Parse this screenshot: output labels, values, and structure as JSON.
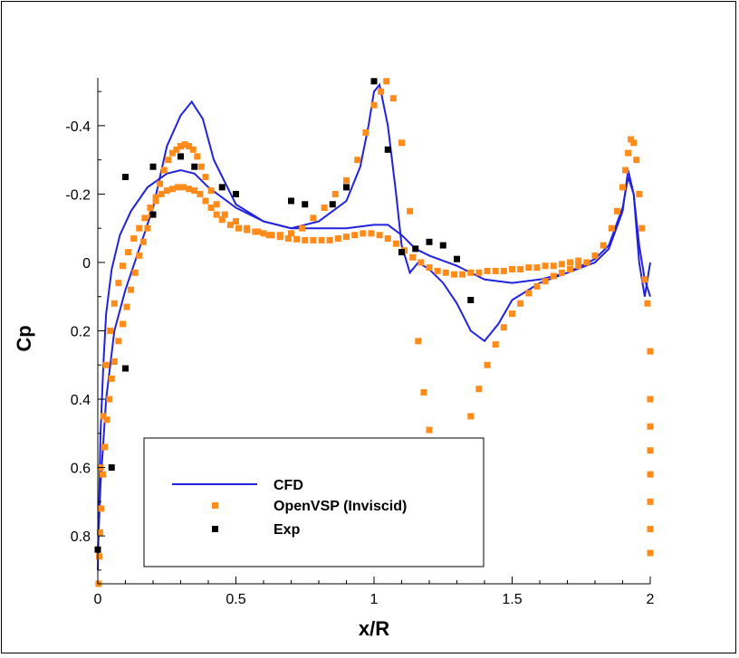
{
  "chart_data": {
    "type": "line",
    "title": "",
    "xlabel": "x/R",
    "ylabel": "Cp",
    "xlim": [
      0,
      2
    ],
    "ylim": [
      -0.54,
      0.94
    ],
    "y_inverted": true,
    "grid": false,
    "legend_position": "bottom-left",
    "x_ticks": [
      0,
      0.5,
      1,
      1.5,
      2
    ],
    "x_tick_labels": [
      "0",
      "0.5",
      "1",
      "1.5",
      "2"
    ],
    "y_ticks": [
      -0.4,
      -0.2,
      0,
      0.2,
      0.4,
      0.6,
      0.8
    ],
    "y_tick_labels": [
      "-0.4",
      "-0.2",
      "0",
      "0.2",
      "0.4",
      "0.6",
      "0.8"
    ],
    "colors": {
      "cfd": "#2222dd",
      "openvsp": "#ff8c1a",
      "exp": "#000000"
    },
    "series": [
      {
        "name": "CFD",
        "kind": "line",
        "curves": [
          [
            [
              0,
              0.9
            ],
            [
              0.005,
              0.7
            ],
            [
              0.01,
              0.5
            ],
            [
              0.02,
              0.3
            ],
            [
              0.03,
              0.15
            ],
            [
              0.05,
              0.02
            ],
            [
              0.08,
              -0.08
            ],
            [
              0.12,
              -0.15
            ],
            [
              0.18,
              -0.22
            ],
            [
              0.25,
              -0.26
            ],
            [
              0.3,
              -0.27
            ],
            [
              0.35,
              -0.26
            ],
            [
              0.4,
              -0.22
            ],
            [
              0.5,
              -0.16
            ],
            [
              0.6,
              -0.12
            ],
            [
              0.7,
              -0.1
            ],
            [
              0.8,
              -0.1
            ],
            [
              0.9,
              -0.1
            ],
            [
              1.0,
              -0.11
            ],
            [
              1.05,
              -0.11
            ],
            [
              1.1,
              -0.08
            ],
            [
              1.15,
              -0.04
            ],
            [
              1.2,
              -0.02
            ],
            [
              1.3,
              0.01
            ],
            [
              1.4,
              0.05
            ],
            [
              1.5,
              0.06
            ],
            [
              1.6,
              0.05
            ],
            [
              1.7,
              0.03
            ],
            [
              1.8,
              0.0
            ],
            [
              1.85,
              -0.04
            ],
            [
              1.9,
              -0.15
            ],
            [
              1.92,
              -0.27
            ],
            [
              1.94,
              -0.2
            ],
            [
              1.96,
              0.0
            ],
            [
              1.98,
              0.1
            ],
            [
              2.0,
              0.0
            ]
          ],
          [
            [
              0,
              0.85
            ],
            [
              0.01,
              0.65
            ],
            [
              0.03,
              0.4
            ],
            [
              0.06,
              0.2
            ],
            [
              0.1,
              0.08
            ],
            [
              0.15,
              -0.04
            ],
            [
              0.2,
              -0.16
            ],
            [
              0.25,
              -0.34
            ],
            [
              0.3,
              -0.43
            ],
            [
              0.34,
              -0.47
            ],
            [
              0.38,
              -0.42
            ],
            [
              0.42,
              -0.3
            ],
            [
              0.5,
              -0.17
            ],
            [
              0.6,
              -0.12
            ],
            [
              0.7,
              -0.1
            ],
            [
              0.8,
              -0.12
            ],
            [
              0.9,
              -0.18
            ],
            [
              0.95,
              -0.28
            ],
            [
              0.98,
              -0.4
            ],
            [
              1.0,
              -0.5
            ],
            [
              1.02,
              -0.52
            ],
            [
              1.05,
              -0.4
            ],
            [
              1.08,
              -0.2
            ],
            [
              1.1,
              -0.05
            ],
            [
              1.13,
              0.03
            ],
            [
              1.16,
              0.0
            ],
            [
              1.2,
              0.02
            ],
            [
              1.25,
              0.06
            ],
            [
              1.3,
              0.12
            ],
            [
              1.35,
              0.2
            ],
            [
              1.4,
              0.23
            ],
            [
              1.45,
              0.18
            ],
            [
              1.5,
              0.11
            ],
            [
              1.6,
              0.06
            ],
            [
              1.7,
              0.03
            ],
            [
              1.8,
              -0.01
            ],
            [
              1.85,
              -0.05
            ],
            [
              1.9,
              -0.16
            ],
            [
              1.92,
              -0.25
            ],
            [
              1.94,
              -0.2
            ],
            [
              1.96,
              -0.05
            ],
            [
              1.98,
              0.05
            ],
            [
              2.0,
              0.1
            ]
          ]
        ]
      },
      {
        "name": "OpenVSP (Inviscid)",
        "kind": "square-markers",
        "points": [
          [
            0.003,
            0.94
          ],
          [
            0.005,
            0.86
          ],
          [
            0.008,
            0.79
          ],
          [
            0.012,
            0.72
          ],
          [
            0.018,
            0.62
          ],
          [
            0.025,
            0.54
          ],
          [
            0.033,
            0.46
          ],
          [
            0.042,
            0.4
          ],
          [
            0.05,
            0.34
          ],
          [
            0.06,
            0.29
          ],
          [
            0.075,
            0.23
          ],
          [
            0.09,
            0.18
          ],
          [
            0.105,
            0.13
          ],
          [
            0.12,
            0.08
          ],
          [
            0.135,
            0.03
          ],
          [
            0.15,
            -0.02
          ],
          [
            0.165,
            -0.06
          ],
          [
            0.18,
            -0.1
          ],
          [
            0.195,
            -0.14
          ],
          [
            0.21,
            -0.19
          ],
          [
            0.225,
            -0.23
          ],
          [
            0.24,
            -0.27
          ],
          [
            0.255,
            -0.3
          ],
          [
            0.27,
            -0.32
          ],
          [
            0.285,
            -0.33
          ],
          [
            0.3,
            -0.34
          ],
          [
            0.315,
            -0.345
          ],
          [
            0.33,
            -0.34
          ],
          [
            0.345,
            -0.33
          ],
          [
            0.36,
            -0.31
          ],
          [
            0.375,
            -0.28
          ],
          [
            0.39,
            -0.25
          ],
          [
            0.41,
            -0.21
          ],
          [
            0.43,
            -0.17
          ],
          [
            0.46,
            -0.14
          ],
          [
            0.5,
            -0.12
          ],
          [
            0.54,
            -0.1
          ],
          [
            0.58,
            -0.09
          ],
          [
            0.62,
            -0.08
          ],
          [
            0.66,
            -0.08
          ],
          [
            0.7,
            -0.085
          ],
          [
            0.74,
            -0.1
          ],
          [
            0.78,
            -0.13
          ],
          [
            0.82,
            -0.16
          ],
          [
            0.86,
            -0.2
          ],
          [
            0.9,
            -0.24
          ],
          [
            0.94,
            -0.3
          ],
          [
            0.97,
            -0.38
          ],
          [
            1.0,
            -0.46
          ],
          [
            1.025,
            -0.5
          ],
          [
            1.045,
            -0.53
          ],
          [
            1.07,
            -0.48
          ],
          [
            1.1,
            -0.35
          ],
          [
            1.13,
            -0.15
          ],
          [
            1.16,
            0.23
          ],
          [
            1.18,
            0.38
          ],
          [
            1.2,
            0.49
          ],
          [
            1.22,
            0.58
          ],
          [
            1.24,
            0.63
          ],
          [
            1.26,
            0.65
          ],
          [
            1.28,
            0.63
          ],
          [
            1.3,
            0.6
          ],
          [
            1.32,
            0.53
          ],
          [
            1.35,
            0.45
          ],
          [
            1.38,
            0.37
          ],
          [
            1.41,
            0.3
          ],
          [
            1.44,
            0.24
          ],
          [
            1.47,
            0.19
          ],
          [
            1.5,
            0.15
          ],
          [
            1.53,
            0.12
          ],
          [
            1.56,
            0.09
          ],
          [
            1.59,
            0.07
          ],
          [
            1.62,
            0.055
          ],
          [
            1.65,
            0.04
          ],
          [
            1.68,
            0.03
          ],
          [
            1.71,
            0.02
          ],
          [
            1.74,
            0.01
          ],
          [
            1.77,
            0.0
          ],
          [
            1.8,
            -0.02
          ],
          [
            1.83,
            -0.05
          ],
          [
            1.86,
            -0.1
          ],
          [
            1.88,
            -0.15
          ],
          [
            1.9,
            -0.22
          ],
          [
            1.91,
            -0.27
          ],
          [
            1.92,
            -0.32
          ],
          [
            1.93,
            -0.36
          ],
          [
            1.94,
            -0.35
          ],
          [
            1.95,
            -0.3
          ],
          [
            1.96,
            -0.2
          ],
          [
            1.97,
            -0.1
          ],
          [
            1.98,
            0.05
          ],
          [
            1.99,
            0.12
          ],
          [
            2.0,
            0.26
          ],
          [
            2.0,
            0.4
          ],
          [
            2.0,
            0.48
          ],
          [
            2.0,
            0.55
          ],
          [
            2.0,
            0.62
          ],
          [
            2.0,
            0.7
          ],
          [
            2.0,
            0.78
          ],
          [
            2.0,
            0.85
          ],
          [
            0.01,
            0.6
          ],
          [
            0.02,
            0.45
          ],
          [
            0.03,
            0.3
          ],
          [
            0.045,
            0.2
          ],
          [
            0.06,
            0.12
          ],
          [
            0.075,
            0.06
          ],
          [
            0.09,
            0.01
          ],
          [
            0.11,
            -0.03
          ],
          [
            0.13,
            -0.07
          ],
          [
            0.15,
            -0.1
          ],
          [
            0.17,
            -0.13
          ],
          [
            0.19,
            -0.16
          ],
          [
            0.21,
            -0.18
          ],
          [
            0.23,
            -0.2
          ],
          [
            0.25,
            -0.21
          ],
          [
            0.27,
            -0.215
          ],
          [
            0.29,
            -0.22
          ],
          [
            0.31,
            -0.22
          ],
          [
            0.33,
            -0.215
          ],
          [
            0.35,
            -0.21
          ],
          [
            0.37,
            -0.2
          ],
          [
            0.39,
            -0.18
          ],
          [
            0.41,
            -0.16
          ],
          [
            0.43,
            -0.14
          ],
          [
            0.45,
            -0.125
          ],
          [
            0.48,
            -0.11
          ],
          [
            0.51,
            -0.1
          ],
          [
            0.54,
            -0.095
          ],
          [
            0.57,
            -0.09
          ],
          [
            0.6,
            -0.085
          ],
          [
            0.63,
            -0.08
          ],
          [
            0.66,
            -0.075
          ],
          [
            0.69,
            -0.07
          ],
          [
            0.72,
            -0.068
          ],
          [
            0.75,
            -0.065
          ],
          [
            0.78,
            -0.065
          ],
          [
            0.81,
            -0.065
          ],
          [
            0.84,
            -0.065
          ],
          [
            0.87,
            -0.07
          ],
          [
            0.9,
            -0.075
          ],
          [
            0.93,
            -0.08
          ],
          [
            0.96,
            -0.085
          ],
          [
            0.99,
            -0.085
          ],
          [
            1.02,
            -0.08
          ],
          [
            1.05,
            -0.07
          ],
          [
            1.08,
            -0.055
          ],
          [
            1.11,
            -0.035
          ],
          [
            1.14,
            -0.015
          ],
          [
            1.17,
            0.0
          ],
          [
            1.2,
            0.015
          ],
          [
            1.23,
            0.025
          ],
          [
            1.26,
            0.03
          ],
          [
            1.29,
            0.035
          ],
          [
            1.32,
            0.035
          ],
          [
            1.35,
            0.03
          ],
          [
            1.38,
            0.03
          ],
          [
            1.41,
            0.025
          ],
          [
            1.44,
            0.025
          ],
          [
            1.47,
            0.025
          ],
          [
            1.5,
            0.02
          ],
          [
            1.53,
            0.02
          ],
          [
            1.56,
            0.015
          ],
          [
            1.59,
            0.015
          ],
          [
            1.62,
            0.01
          ],
          [
            1.65,
            0.01
          ],
          [
            1.68,
            0.005
          ],
          [
            1.71,
            0.0
          ],
          [
            1.74,
            -0.005
          ]
        ]
      },
      {
        "name": "Exp",
        "kind": "square-markers",
        "points": [
          [
            0.0,
            0.84
          ],
          [
            0.05,
            0.6
          ],
          [
            0.1,
            0.31
          ],
          [
            0.1,
            -0.25
          ],
          [
            0.2,
            -0.28
          ],
          [
            0.2,
            -0.14
          ],
          [
            0.3,
            -0.31
          ],
          [
            0.35,
            -0.28
          ],
          [
            0.45,
            -0.22
          ],
          [
            0.5,
            -0.2
          ],
          [
            0.7,
            -0.18
          ],
          [
            0.75,
            -0.17
          ],
          [
            0.85,
            -0.17
          ],
          [
            0.9,
            -0.22
          ],
          [
            1.0,
            -0.53
          ],
          [
            1.05,
            -0.33
          ],
          [
            1.1,
            -0.03
          ],
          [
            1.15,
            -0.04
          ],
          [
            1.2,
            -0.06
          ],
          [
            1.25,
            -0.05
          ],
          [
            1.3,
            -0.01
          ],
          [
            1.35,
            0.11
          ]
        ]
      }
    ]
  }
}
